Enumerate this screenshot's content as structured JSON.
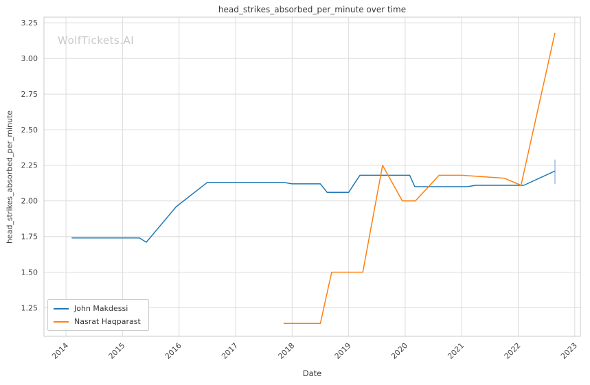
{
  "watermark": "WolfTickets.AI",
  "chart_data": {
    "type": "line",
    "title": "head_strikes_absorbed_per_minute over time",
    "xlabel": "Date",
    "ylabel": "head_strikes_absorbed_per_minute",
    "xlim": [
      2013.61,
      2023.1
    ],
    "ylim": [
      1.05,
      3.29
    ],
    "xticks": [
      2014,
      2015,
      2016,
      2017,
      2018,
      2019,
      2020,
      2021,
      2022,
      2023
    ],
    "yticks": [
      1.25,
      1.5,
      1.75,
      2.0,
      2.25,
      2.5,
      2.75,
      3.0,
      3.25
    ],
    "grid": true,
    "legend_position": "lower left",
    "colors": {
      "grid": "#dcdcdc",
      "border": "#c8c8c8",
      "tick_text": "#444444"
    },
    "series": [
      {
        "name": "John Makdessi",
        "color": "#1f77b4",
        "points": [
          [
            2014.1,
            1.74
          ],
          [
            2015.3,
            1.74
          ],
          [
            2015.42,
            1.71
          ],
          [
            2015.95,
            1.96
          ],
          [
            2016.5,
            2.13
          ],
          [
            2017.85,
            2.13
          ],
          [
            2018.0,
            2.12
          ],
          [
            2018.5,
            2.12
          ],
          [
            2018.62,
            2.06
          ],
          [
            2019.0,
            2.06
          ],
          [
            2019.2,
            2.18
          ],
          [
            2020.08,
            2.18
          ],
          [
            2020.17,
            2.1
          ],
          [
            2021.1,
            2.1
          ],
          [
            2021.25,
            2.11
          ],
          [
            2022.1,
            2.11
          ],
          [
            2022.65,
            2.21
          ]
        ]
      },
      {
        "name": "Nasrat Haqparast",
        "color": "#ff7f0e",
        "points": [
          [
            2017.85,
            1.14
          ],
          [
            2018.5,
            1.14
          ],
          [
            2018.7,
            1.5
          ],
          [
            2019.25,
            1.5
          ],
          [
            2019.6,
            2.25
          ],
          [
            2019.95,
            2.0
          ],
          [
            2020.18,
            2.0
          ],
          [
            2020.6,
            2.18
          ],
          [
            2021.0,
            2.18
          ],
          [
            2021.75,
            2.16
          ],
          [
            2022.05,
            2.11
          ],
          [
            2022.65,
            3.18
          ]
        ]
      }
    ],
    "annotations": [
      {
        "type": "vline_segment",
        "x": 2022.65,
        "y1": 2.12,
        "y2": 2.29,
        "color": "#aec7e8"
      }
    ]
  }
}
